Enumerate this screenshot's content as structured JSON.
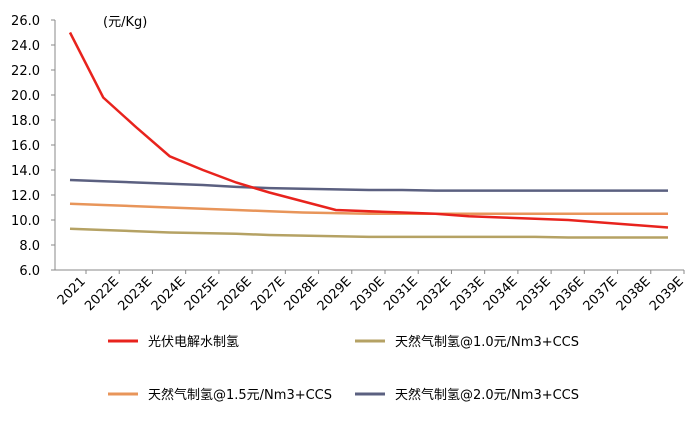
{
  "chart_data": {
    "type": "line",
    "y_axis_label": "(元/Kg)",
    "categories": [
      "2021",
      "2022E",
      "2023E",
      "2024E",
      "2025E",
      "2026E",
      "2027E",
      "2028E",
      "2029E",
      "2030E",
      "2031E",
      "2032E",
      "2033E",
      "2034E",
      "2035E",
      "2036E",
      "2037E",
      "2038E",
      "2039E"
    ],
    "series": [
      {
        "name": "光伏电解水制氢",
        "color": "#e8231d",
        "values": [
          25.0,
          19.8,
          17.4,
          15.1,
          14.0,
          13.0,
          12.2,
          11.5,
          10.8,
          10.7,
          10.6,
          10.5,
          10.3,
          10.2,
          10.1,
          10.0,
          9.8,
          9.6,
          9.4
        ]
      },
      {
        "name": "天然气制氢@1.0元/Nm3+CCS",
        "color": "#b5a264",
        "values": [
          9.3,
          9.2,
          9.1,
          9.0,
          8.95,
          8.9,
          8.8,
          8.75,
          8.7,
          8.65,
          8.65,
          8.65,
          8.65,
          8.65,
          8.65,
          8.6,
          8.6,
          8.6,
          8.6
        ]
      },
      {
        "name": "天然气制氢@1.5元/Nm3+CCS",
        "color": "#e8955a",
        "values": [
          11.3,
          11.2,
          11.1,
          11.0,
          10.9,
          10.8,
          10.7,
          10.6,
          10.55,
          10.5,
          10.5,
          10.5,
          10.5,
          10.5,
          10.5,
          10.5,
          10.5,
          10.5,
          10.5
        ]
      },
      {
        "name": "天然气制氢@2.0元/Nm3+CCS",
        "color": "#5b6080",
        "values": [
          13.2,
          13.1,
          13.0,
          12.9,
          12.8,
          12.65,
          12.55,
          12.5,
          12.45,
          12.4,
          12.4,
          12.35,
          12.35,
          12.35,
          12.35,
          12.35,
          12.35,
          12.35,
          12.35
        ]
      }
    ],
    "ylim": [
      6,
      26
    ],
    "yticks": [
      {
        "value": 6,
        "label": "6.0"
      },
      {
        "value": 8,
        "label": "8.0"
      },
      {
        "value": 10,
        "label": "10.0"
      },
      {
        "value": 12,
        "label": "12.0"
      },
      {
        "value": 14,
        "label": "14.0"
      },
      {
        "value": 16,
        "label": "16.0"
      },
      {
        "value": 18,
        "label": "18.0"
      },
      {
        "value": 20,
        "label": "20.0"
      },
      {
        "value": 22,
        "label": "22.0"
      },
      {
        "value": 24,
        "label": "24.0"
      },
      {
        "value": 26,
        "label": "26.0"
      }
    ],
    "grid": false,
    "legend": "bottom"
  }
}
